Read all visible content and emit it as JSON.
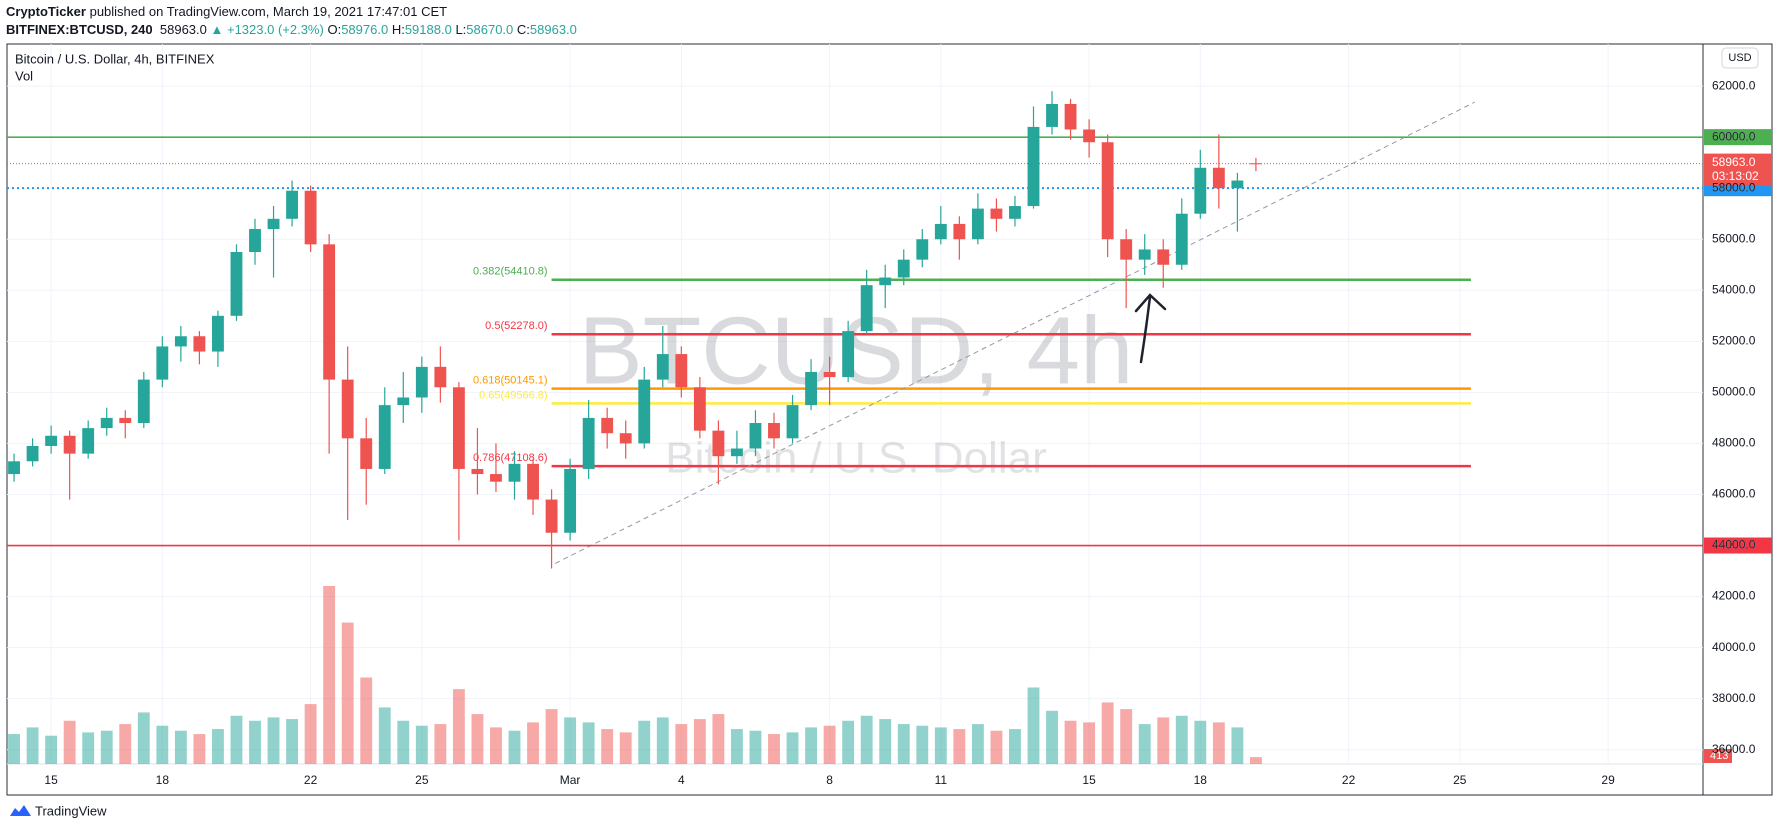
{
  "header": {
    "author": "CryptoTicker",
    "published": "published on TradingView.com, March 19, 2021 17:47:01 CET",
    "symbol": "BITFINEX:BTCUSD, 240",
    "price": "58963.0",
    "change": "▲ +1323.0 (+2.3%)",
    "ohlc": [
      {
        "label": "O:",
        "value": "58976.0"
      },
      {
        "label": "H:",
        "value": "59188.0"
      },
      {
        "label": "L:",
        "value": "58670.0"
      },
      {
        "label": "C:",
        "value": "58963.0"
      }
    ]
  },
  "footer": {
    "brand": "TradingView"
  },
  "chart_data": {
    "type": "candlestick",
    "title": "Bitcoin / U.S. Dollar, 4h, BITFINEX",
    "volume_title": "Vol",
    "currency": "USD",
    "watermark": [
      "BTCUSD, 4h",
      "Bitcoin / U.S. Dollar"
    ],
    "up_color": "#26a69a",
    "down_color": "#ef5350",
    "grid": true,
    "xlim": [
      -1.19,
      44.56
    ],
    "xticks": [
      {
        "value": 0,
        "label": "15"
      },
      {
        "value": 3,
        "label": "18"
      },
      {
        "value": 7,
        "label": "22"
      },
      {
        "value": 10,
        "label": "25"
      },
      {
        "value": 14,
        "label": "Mar"
      },
      {
        "value": 17,
        "label": "4"
      },
      {
        "value": 21,
        "label": "8"
      },
      {
        "value": 24,
        "label": "11"
      },
      {
        "value": 28,
        "label": "15"
      },
      {
        "value": 31,
        "label": "18"
      },
      {
        "value": 35,
        "label": "22"
      },
      {
        "value": 38,
        "label": "25"
      },
      {
        "value": 42,
        "label": "29"
      }
    ],
    "ylim": [
      35440,
      63610
    ],
    "yticks": [
      {
        "value": 36000,
        "label": "36000.0"
      },
      {
        "value": 38000,
        "label": "38000.0"
      },
      {
        "value": 40000,
        "label": "40000.0"
      },
      {
        "value": 42000,
        "label": "42000.0"
      },
      {
        "value": 44000,
        "label": "44000.0"
      },
      {
        "value": 46000,
        "label": "46000.0"
      },
      {
        "value": 48000,
        "label": "48000.0"
      },
      {
        "value": 50000,
        "label": "50000.0"
      },
      {
        "value": 52000,
        "label": "52000.0"
      },
      {
        "value": 54000,
        "label": "54000.0"
      },
      {
        "value": 56000,
        "label": "56000.0"
      },
      {
        "value": 58000,
        "label": "58000.0"
      },
      {
        "value": 60000,
        "label": "60000.0"
      },
      {
        "value": 62000,
        "label": "62000.0"
      }
    ],
    "vlim": [
      0,
      11000
    ],
    "candles": [
      {
        "x": -1,
        "o": 46800,
        "h": 47600,
        "l": 46500,
        "c": 47300,
        "v": 1800
      },
      {
        "x": -0.5,
        "o": 47300,
        "h": 48200,
        "l": 47100,
        "c": 47900,
        "v": 2200
      },
      {
        "x": 0,
        "o": 47900,
        "h": 48700,
        "l": 47600,
        "c": 48300,
        "v": 1700
      },
      {
        "x": 0.5,
        "o": 48300,
        "h": 48500,
        "l": 45800,
        "c": 47600,
        "v": 2600
      },
      {
        "x": 1,
        "o": 47600,
        "h": 48900,
        "l": 47400,
        "c": 48600,
        "v": 1900
      },
      {
        "x": 1.5,
        "o": 48600,
        "h": 49400,
        "l": 48300,
        "c": 49000,
        "v": 2000
      },
      {
        "x": 2,
        "o": 49000,
        "h": 49300,
        "l": 48200,
        "c": 48800,
        "v": 2400
      },
      {
        "x": 2.5,
        "o": 48800,
        "h": 50800,
        "l": 48600,
        "c": 50500,
        "v": 3100
      },
      {
        "x": 3,
        "o": 50500,
        "h": 52200,
        "l": 50200,
        "c": 51800,
        "v": 2300
      },
      {
        "x": 3.5,
        "o": 51800,
        "h": 52600,
        "l": 51200,
        "c": 52200,
        "v": 2000
      },
      {
        "x": 4,
        "o": 52200,
        "h": 52400,
        "l": 51100,
        "c": 51600,
        "v": 1800
      },
      {
        "x": 4.5,
        "o": 51600,
        "h": 53200,
        "l": 51000,
        "c": 53000,
        "v": 2100
      },
      {
        "x": 5,
        "o": 53000,
        "h": 55800,
        "l": 52800,
        "c": 55500,
        "v": 2900
      },
      {
        "x": 5.5,
        "o": 55500,
        "h": 56800,
        "l": 55000,
        "c": 56400,
        "v": 2600
      },
      {
        "x": 6,
        "o": 56400,
        "h": 57300,
        "l": 54500,
        "c": 56800,
        "v": 2800
      },
      {
        "x": 6.5,
        "o": 56800,
        "h": 58300,
        "l": 56500,
        "c": 57900,
        "v": 2700
      },
      {
        "x": 7,
        "o": 57900,
        "h": 58100,
        "l": 55500,
        "c": 55800,
        "v": 3600
      },
      {
        "x": 7.5,
        "o": 55800,
        "h": 56200,
        "l": 47600,
        "c": 50500,
        "v": 10700
      },
      {
        "x": 8,
        "o": 50500,
        "h": 51800,
        "l": 45000,
        "c": 48200,
        "v": 8500
      },
      {
        "x": 8.5,
        "o": 48200,
        "h": 49000,
        "l": 45600,
        "c": 47000,
        "v": 5200
      },
      {
        "x": 9,
        "o": 47000,
        "h": 50200,
        "l": 46800,
        "c": 49500,
        "v": 3400
      },
      {
        "x": 9.5,
        "o": 49500,
        "h": 50800,
        "l": 48800,
        "c": 49800,
        "v": 2600
      },
      {
        "x": 10,
        "o": 49800,
        "h": 51400,
        "l": 49200,
        "c": 51000,
        "v": 2300
      },
      {
        "x": 10.5,
        "o": 51000,
        "h": 51800,
        "l": 49600,
        "c": 50200,
        "v": 2400
      },
      {
        "x": 11,
        "o": 50200,
        "h": 50400,
        "l": 44200,
        "c": 47000,
        "v": 4500
      },
      {
        "x": 11.5,
        "o": 47000,
        "h": 48600,
        "l": 46000,
        "c": 46800,
        "v": 3000
      },
      {
        "x": 12,
        "o": 46800,
        "h": 48000,
        "l": 46100,
        "c": 46500,
        "v": 2200
      },
      {
        "x": 12.5,
        "o": 46500,
        "h": 47700,
        "l": 45800,
        "c": 47200,
        "v": 2000
      },
      {
        "x": 13,
        "o": 47200,
        "h": 47400,
        "l": 45200,
        "c": 45800,
        "v": 2500
      },
      {
        "x": 13.5,
        "o": 45800,
        "h": 46200,
        "l": 43100,
        "c": 44500,
        "v": 3300
      },
      {
        "x": 14,
        "o": 44500,
        "h": 47400,
        "l": 44200,
        "c": 47000,
        "v": 2800
      },
      {
        "x": 14.5,
        "o": 47000,
        "h": 49700,
        "l": 46600,
        "c": 49000,
        "v": 2500
      },
      {
        "x": 15,
        "o": 49000,
        "h": 49400,
        "l": 47800,
        "c": 48400,
        "v": 2100
      },
      {
        "x": 15.5,
        "o": 48400,
        "h": 48900,
        "l": 47400,
        "c": 48000,
        "v": 1900
      },
      {
        "x": 16,
        "o": 48000,
        "h": 51000,
        "l": 47800,
        "c": 50500,
        "v": 2600
      },
      {
        "x": 16.5,
        "o": 50500,
        "h": 52600,
        "l": 50200,
        "c": 51500,
        "v": 2800
      },
      {
        "x": 17,
        "o": 51500,
        "h": 51800,
        "l": 49800,
        "c": 50200,
        "v": 2400
      },
      {
        "x": 17.5,
        "o": 50200,
        "h": 50600,
        "l": 48200,
        "c": 48500,
        "v": 2700
      },
      {
        "x": 18,
        "o": 48500,
        "h": 48900,
        "l": 46400,
        "c": 47500,
        "v": 3000
      },
      {
        "x": 18.5,
        "o": 47500,
        "h": 48500,
        "l": 47200,
        "c": 47800,
        "v": 2100
      },
      {
        "x": 19,
        "o": 47800,
        "h": 49300,
        "l": 47500,
        "c": 48800,
        "v": 2000
      },
      {
        "x": 19.5,
        "o": 48800,
        "h": 49200,
        "l": 47800,
        "c": 48200,
        "v": 1800
      },
      {
        "x": 20,
        "o": 48200,
        "h": 49900,
        "l": 48000,
        "c": 49500,
        "v": 1900
      },
      {
        "x": 20.5,
        "o": 49500,
        "h": 51300,
        "l": 49300,
        "c": 50800,
        "v": 2200
      },
      {
        "x": 21,
        "o": 50800,
        "h": 51400,
        "l": 49500,
        "c": 50600,
        "v": 2300
      },
      {
        "x": 21.5,
        "o": 50600,
        "h": 52800,
        "l": 50400,
        "c": 52400,
        "v": 2600
      },
      {
        "x": 22,
        "o": 52400,
        "h": 54800,
        "l": 52300,
        "c": 54200,
        "v": 2900
      },
      {
        "x": 22.5,
        "o": 54200,
        "h": 55000,
        "l": 53300,
        "c": 54500,
        "v": 2700
      },
      {
        "x": 23,
        "o": 54500,
        "h": 55600,
        "l": 54200,
        "c": 55200,
        "v": 2400
      },
      {
        "x": 23.5,
        "o": 55200,
        "h": 56400,
        "l": 54900,
        "c": 56000,
        "v": 2300
      },
      {
        "x": 24,
        "o": 56000,
        "h": 57300,
        "l": 55800,
        "c": 56600,
        "v": 2200
      },
      {
        "x": 24.5,
        "o": 56600,
        "h": 56900,
        "l": 55200,
        "c": 56000,
        "v": 2100
      },
      {
        "x": 25,
        "o": 56000,
        "h": 57800,
        "l": 55800,
        "c": 57200,
        "v": 2400
      },
      {
        "x": 25.5,
        "o": 57200,
        "h": 57600,
        "l": 56300,
        "c": 56800,
        "v": 2000
      },
      {
        "x": 26,
        "o": 56800,
        "h": 57700,
        "l": 56500,
        "c": 57300,
        "v": 2100
      },
      {
        "x": 26.5,
        "o": 57300,
        "h": 61200,
        "l": 57200,
        "c": 60400,
        "v": 4600
      },
      {
        "x": 27,
        "o": 60400,
        "h": 61800,
        "l": 60100,
        "c": 61300,
        "v": 3200
      },
      {
        "x": 27.5,
        "o": 61300,
        "h": 61500,
        "l": 59900,
        "c": 60300,
        "v": 2600
      },
      {
        "x": 28,
        "o": 60300,
        "h": 60700,
        "l": 59200,
        "c": 59800,
        "v": 2500
      },
      {
        "x": 28.5,
        "o": 59800,
        "h": 60100,
        "l": 55300,
        "c": 56000,
        "v": 3700
      },
      {
        "x": 29,
        "o": 56000,
        "h": 56400,
        "l": 53300,
        "c": 55200,
        "v": 3300
      },
      {
        "x": 29.5,
        "o": 55200,
        "h": 56200,
        "l": 54600,
        "c": 55600,
        "v": 2400
      },
      {
        "x": 30,
        "o": 55600,
        "h": 56000,
        "l": 54100,
        "c": 55000,
        "v": 2800
      },
      {
        "x": 30.5,
        "o": 55000,
        "h": 57600,
        "l": 54800,
        "c": 57000,
        "v": 2900
      },
      {
        "x": 31,
        "o": 57000,
        "h": 59500,
        "l": 56800,
        "c": 58800,
        "v": 2600
      },
      {
        "x": 31.5,
        "o": 58800,
        "h": 60100,
        "l": 57200,
        "c": 58000,
        "v": 2500
      },
      {
        "x": 32,
        "o": 58000,
        "h": 58600,
        "l": 56300,
        "c": 58300,
        "v": 2200
      },
      {
        "x": 32.5,
        "o": 58976,
        "h": 59188,
        "l": 58670,
        "c": 58963,
        "v": 413
      }
    ],
    "levels": [
      {
        "value": 60000,
        "label": "60000.0",
        "color": "#4caf50",
        "style": "solid"
      },
      {
        "value": 58000,
        "label": "58000.0",
        "color": "#2196f3",
        "style": "dotted"
      },
      {
        "value": 44000,
        "label": "44000.0",
        "color": "#f23645",
        "style": "solid"
      }
    ],
    "last_price": {
      "value": 58963,
      "label": "58963.0",
      "countdown": "03:13:02",
      "color": "#ef5350"
    },
    "fib": {
      "x_start": 13.5,
      "x_end": 38.3,
      "levels": [
        {
          "value": 54410.8,
          "label": "0.382(54410.8)",
          "color": "#4caf50"
        },
        {
          "value": 52278.0,
          "label": "0.5(52278.0)",
          "color": "#f23645"
        },
        {
          "value": 50145.1,
          "label": "0.618(50145.1)",
          "color": "#ff9800"
        },
        {
          "value": 49566.8,
          "label": "0.65(49566.8)",
          "color": "#ffeb3b"
        },
        {
          "value": 47108.6,
          "label": "0.786(47108.6)",
          "color": "#f23645"
        }
      ]
    },
    "trendline": {
      "x": [
        13.6,
        38.4
      ],
      "y": [
        43300,
        61370
      ]
    }
  }
}
